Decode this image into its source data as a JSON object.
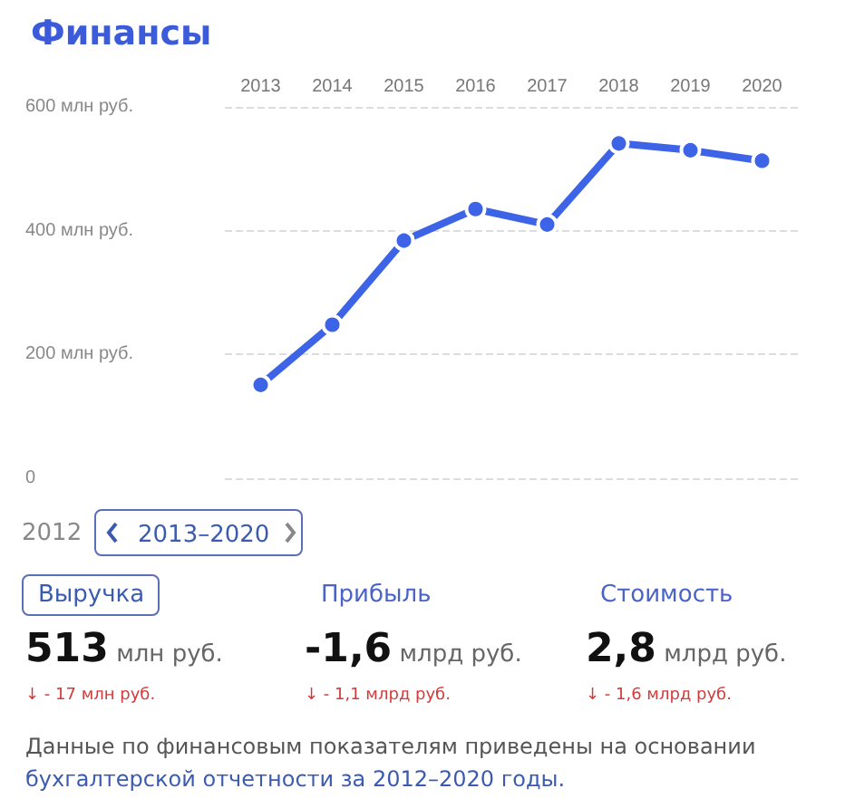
{
  "chart_data": {
    "type": "line",
    "title": "Финансы",
    "categories": [
      "2013",
      "2014",
      "2015",
      "2016",
      "2017",
      "2018",
      "2019",
      "2020"
    ],
    "series": [
      {
        "color": "#3d63e6",
        "values": [
          151,
          248,
          384,
          435,
          410,
          541,
          530,
          513
        ]
      }
    ],
    "ylim": [
      0,
      600
    ],
    "yticks": [
      0,
      {
        "value": 200,
        "label": "200 млн руб."
      },
      {
        "value": 400,
        "label": "400 млн руб."
      },
      {
        "value": 600,
        "label": "600 млн руб."
      }
    ],
    "grid": "y",
    "marker": "circle",
    "line_style": "solid",
    "annotations": [
      "2012",
      "2013–2020",
      "Выручка",
      "Прибыль",
      "Стоимость",
      "513 млн руб.",
      "-1,6 млрд руб.",
      "2,8 млрд руб.",
      "↓ - 17 млн руб.",
      "↓ - 1,1 млрд руб.",
      "↓ - 1,6 млрд руб.",
      "Данные по финансовым показателям приведены на основании",
      "бухгалтерской отчетности за 2012–2020 годы."
    ]
  }
}
